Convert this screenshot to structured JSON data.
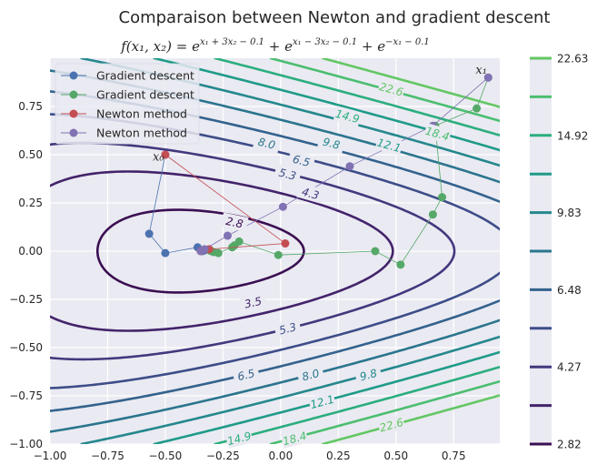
{
  "figure": {
    "suptitle": "Comparaison between Newton and gradient descent",
    "axes_title": "f(x₁, x₂) = e^(x₁ + 3x₂ − 0.1) + e^(x₁ − 3x₂ − 0.1) + e^(−x₁ − 0.1)",
    "axes_title_parts": {
      "lhs": "f(x₁, x₂) = ",
      "e": "e",
      "exp1": "x₁ + 3x₂ − 0.1",
      "plus": " + ",
      "exp2": "x₁ − 3x₂ − 0.1",
      "exp3": "−x₁ − 0.1"
    }
  },
  "colors": {
    "plot_bg": "#eaeaf2",
    "grid": "#ffffff",
    "gd_blue": "#4c72b0",
    "gd_green": "#55a868",
    "newton_red": "#c44e52",
    "newton_purple": "#8172b3"
  },
  "chart_data": {
    "type": "contour",
    "function": "exp(x1 + 3*x2 - 0.1) + exp(x1 - 3*x2 - 0.1) + exp(-x1 - 0.1)",
    "xlim": [
      -1.0,
      0.95
    ],
    "ylim": [
      -1.0,
      1.0
    ],
    "xticks": [
      -1.0,
      -0.75,
      -0.5,
      -0.25,
      0.0,
      0.25,
      0.5,
      0.75
    ],
    "xtick_labels": [
      "−1.00",
      "−0.75",
      "−0.50",
      "−0.25",
      "0.00",
      "0.25",
      "0.50",
      "0.75"
    ],
    "yticks": [
      -1.0,
      -0.75,
      -0.5,
      -0.25,
      0.0,
      0.25,
      0.5,
      0.75
    ],
    "ytick_labels": [
      "−1.00",
      "−0.75",
      "−0.50",
      "−0.25",
      "0.00",
      "0.25",
      "0.50",
      "0.75"
    ],
    "grid": true,
    "contour_levels": [
      2.82,
      3.5,
      4.27,
      5.3,
      6.48,
      8.0,
      9.83,
      12.1,
      14.92,
      18.4,
      22.63
    ],
    "contour_colors": [
      "#3b0f52",
      "#43236a",
      "#43387e",
      "#3d4d89",
      "#33628d",
      "#2b758e",
      "#24888d",
      "#1f9b88",
      "#2bae7e",
      "#4bbe70",
      "#63c764"
    ],
    "contour_labels": [
      {
        "text": "2.8",
        "level": 2.82,
        "x": -0.2,
        "y": 0.15
      },
      {
        "text": "3.5",
        "level": 3.5,
        "x": -0.12,
        "y": -0.265
      },
      {
        "text": "4.3",
        "level": 4.27,
        "x": 0.13,
        "y": 0.3
      },
      {
        "text": "5.3",
        "level": 5.3,
        "x": 0.03,
        "y": 0.4
      },
      {
        "text": "5.3",
        "level": 5.3,
        "x": 0.03,
        "y": -0.4
      },
      {
        "text": "6.5",
        "level": 6.48,
        "x": 0.09,
        "y": 0.47
      },
      {
        "text": "6.5",
        "level": 6.48,
        "x": -0.15,
        "y": -0.64
      },
      {
        "text": "8.0",
        "level": 8.0,
        "x": -0.06,
        "y": 0.56
      },
      {
        "text": "8.0",
        "level": 8.0,
        "x": 0.13,
        "y": -0.64
      },
      {
        "text": "9.8",
        "level": 9.83,
        "x": 0.22,
        "y": 0.56
      },
      {
        "text": "9.8",
        "level": 9.83,
        "x": 0.38,
        "y": -0.64
      },
      {
        "text": "12.1",
        "level": 12.1,
        "x": 0.47,
        "y": 0.55
      },
      {
        "text": "12.1",
        "level": 12.1,
        "x": 0.18,
        "y": -0.78
      },
      {
        "text": "14.9",
        "level": 14.92,
        "x": 0.29,
        "y": 0.7
      },
      {
        "text": "14.9",
        "level": 14.92,
        "x": -0.18,
        "y": -0.97
      },
      {
        "text": "18.4",
        "level": 18.4,
        "x": 0.68,
        "y": 0.61
      },
      {
        "text": "18.4",
        "level": 18.4,
        "x": 0.06,
        "y": -0.97
      },
      {
        "text": "22.6",
        "level": 22.63,
        "x": 0.48,
        "y": 0.84
      },
      {
        "text": "22.6",
        "level": 22.63,
        "x": 0.48,
        "y": -0.9
      }
    ],
    "annotations": [
      {
        "text": "x₀",
        "x": -0.53,
        "y": 0.47
      },
      {
        "text": "x₁",
        "x": 0.87,
        "y": 0.92
      }
    ],
    "legend": {
      "placement": "upper-left"
    },
    "series": [
      {
        "name": "Gradient descent",
        "color": "#4c72b0",
        "x": [
          -0.5,
          -0.57,
          -0.5,
          -0.36,
          -0.34,
          -0.33,
          -0.335
        ],
        "y": [
          0.5,
          0.09,
          -0.01,
          0.02,
          0.0,
          0.005,
          0.002
        ]
      },
      {
        "name": "Gradient descent",
        "color": "#55a868",
        "x": [
          0.9,
          0.85,
          0.67,
          0.7,
          0.66,
          0.52,
          0.41,
          -0.01,
          -0.18,
          -0.2,
          -0.21,
          -0.27,
          -0.29,
          -0.3,
          -0.305
        ],
        "y": [
          0.9,
          0.74,
          0.65,
          0.28,
          0.19,
          -0.07,
          0.0,
          -0.02,
          0.05,
          0.03,
          0.02,
          -0.01,
          -0.005,
          0.0,
          0.002
        ]
      },
      {
        "name": "Newton method",
        "color": "#c44e52",
        "x": [
          -0.5,
          0.02,
          -0.31,
          -0.345,
          -0.3466
        ],
        "y": [
          0.5,
          0.04,
          0.01,
          0.001,
          0.0
        ]
      },
      {
        "name": "Newton method",
        "color": "#8172b3",
        "x": [
          0.9,
          0.66,
          0.3,
          0.01,
          -0.23,
          -0.33,
          -0.3466
        ],
        "y": [
          0.9,
          0.65,
          0.44,
          0.23,
          0.08,
          0.01,
          0.0
        ]
      }
    ],
    "colorbar": {
      "tick_values": [
        2.82,
        4.27,
        6.48,
        9.83,
        14.92,
        22.63
      ],
      "tick_labels": [
        "2.82",
        "4.27",
        "6.48",
        "9.83",
        "14.92",
        "22.63"
      ]
    }
  }
}
